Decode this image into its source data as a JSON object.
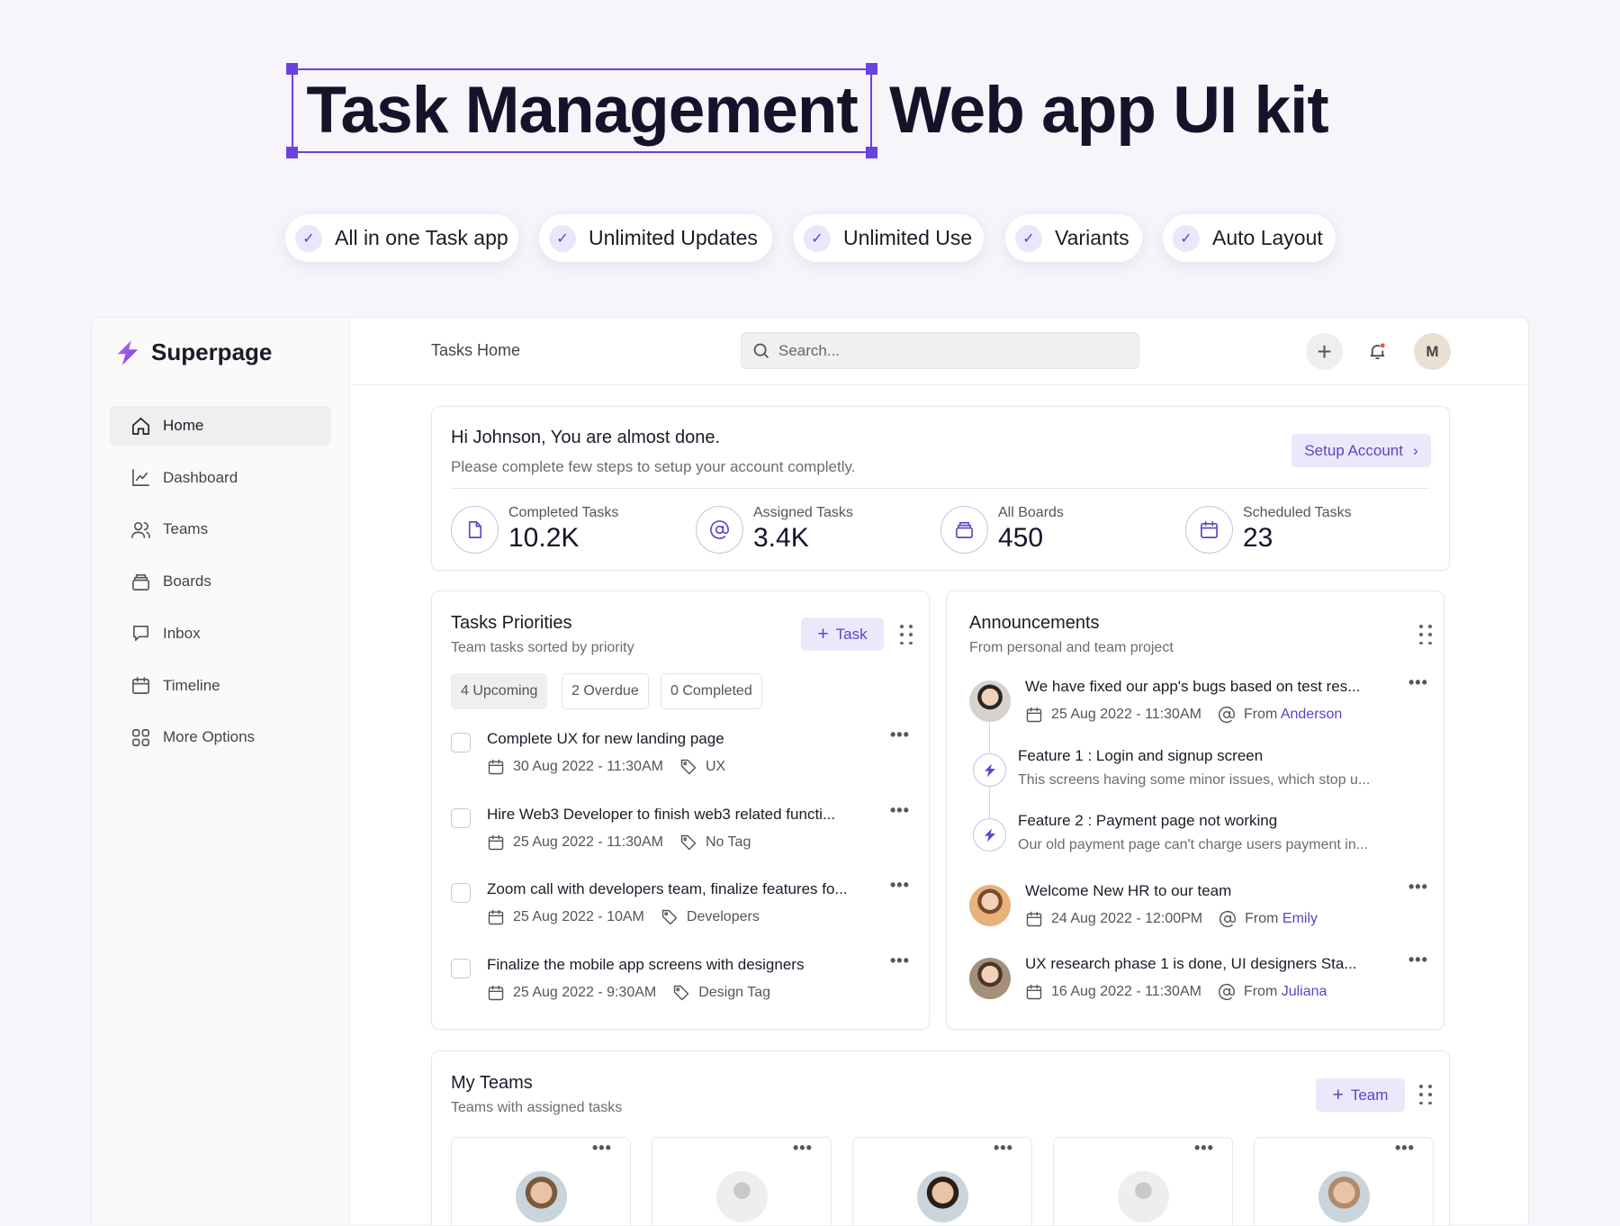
{
  "hero": {
    "title_highlight": "Task Management",
    "title_rest": "Web app UI kit",
    "accent": "#6a43dd"
  },
  "pills": [
    "All in one Task app",
    "Unlimited Updates",
    "Unlimited Use",
    "Variants",
    "Auto Layout"
  ],
  "sidebar": {
    "brand": "Superpage",
    "items": [
      {
        "label": "Home",
        "icon": "home-icon",
        "active": true
      },
      {
        "label": "Dashboard",
        "icon": "chart-icon"
      },
      {
        "label": "Teams",
        "icon": "users-icon"
      },
      {
        "label": "Boards",
        "icon": "boards-icon"
      },
      {
        "label": "Inbox",
        "icon": "inbox-icon"
      },
      {
        "label": "Timeline",
        "icon": "calendar-icon"
      },
      {
        "label": "More Options",
        "icon": "grid-icon"
      }
    ]
  },
  "header": {
    "title": "Tasks Home",
    "search_placeholder": "Search...",
    "avatar_initial": "M"
  },
  "welcome": {
    "title": "Hi Johnson, You are almost done.",
    "subtitle": "Please complete few steps to setup your account completly.",
    "button": "Setup Account",
    "stats": [
      {
        "label": "Completed Tasks",
        "value": "10.2K",
        "icon": "file-icon"
      },
      {
        "label": "Assigned Tasks",
        "value": "3.4K",
        "icon": "at-icon"
      },
      {
        "label": "All Boards",
        "value": "450",
        "icon": "boards-icon"
      },
      {
        "label": "Scheduled Tasks",
        "value": "23",
        "icon": "calendar-icon"
      }
    ]
  },
  "priorities": {
    "title": "Tasks Priorities",
    "subtitle": "Team tasks sorted by priority",
    "button": "Task",
    "filters": [
      "4 Upcoming",
      "2 Overdue",
      "0 Completed"
    ],
    "tasks": [
      {
        "title": "Complete UX for new landing page",
        "date": "30 Aug 2022 - 11:30AM",
        "tag": "UX"
      },
      {
        "title": "Hire Web3 Developer to finish web3 related functi...",
        "date": "25 Aug 2022 - 11:30AM",
        "tag": "No Tag"
      },
      {
        "title": "Zoom call with developers team, finalize features fo...",
        "date": "25 Aug 2022 - 10AM",
        "tag": "Developers"
      },
      {
        "title": "Finalize the mobile app screens with designers",
        "date": "25 Aug 2022 - 9:30AM",
        "tag": "Design Tag"
      }
    ]
  },
  "announcements": {
    "title": "Announcements",
    "subtitle": "From personal and team project",
    "items": [
      {
        "title": "We have fixed our app's bugs based on test res...",
        "date": "25 Aug 2022 - 11:30AM",
        "from": "From",
        "author": "Anderson"
      },
      {
        "title": "Welcome New HR to our team",
        "date": "24 Aug 2022 - 12:00PM",
        "from": "From",
        "author": "Emily"
      },
      {
        "title": "UX research phase 1 is done, UI designers Sta...",
        "date": "16 Aug 2022 - 11:30AM",
        "from": "From",
        "author": "Juliana"
      }
    ],
    "features": [
      {
        "title": "Feature 1 :  Login and signup screen",
        "desc": "This screens having some minor issues, which stop u..."
      },
      {
        "title": "Feature 2 : Payment page not working",
        "desc": "Our old payment page can't charge users payment in..."
      }
    ]
  },
  "teams": {
    "title": "My Teams",
    "subtitle": "Teams with assigned tasks",
    "button": "Team"
  }
}
